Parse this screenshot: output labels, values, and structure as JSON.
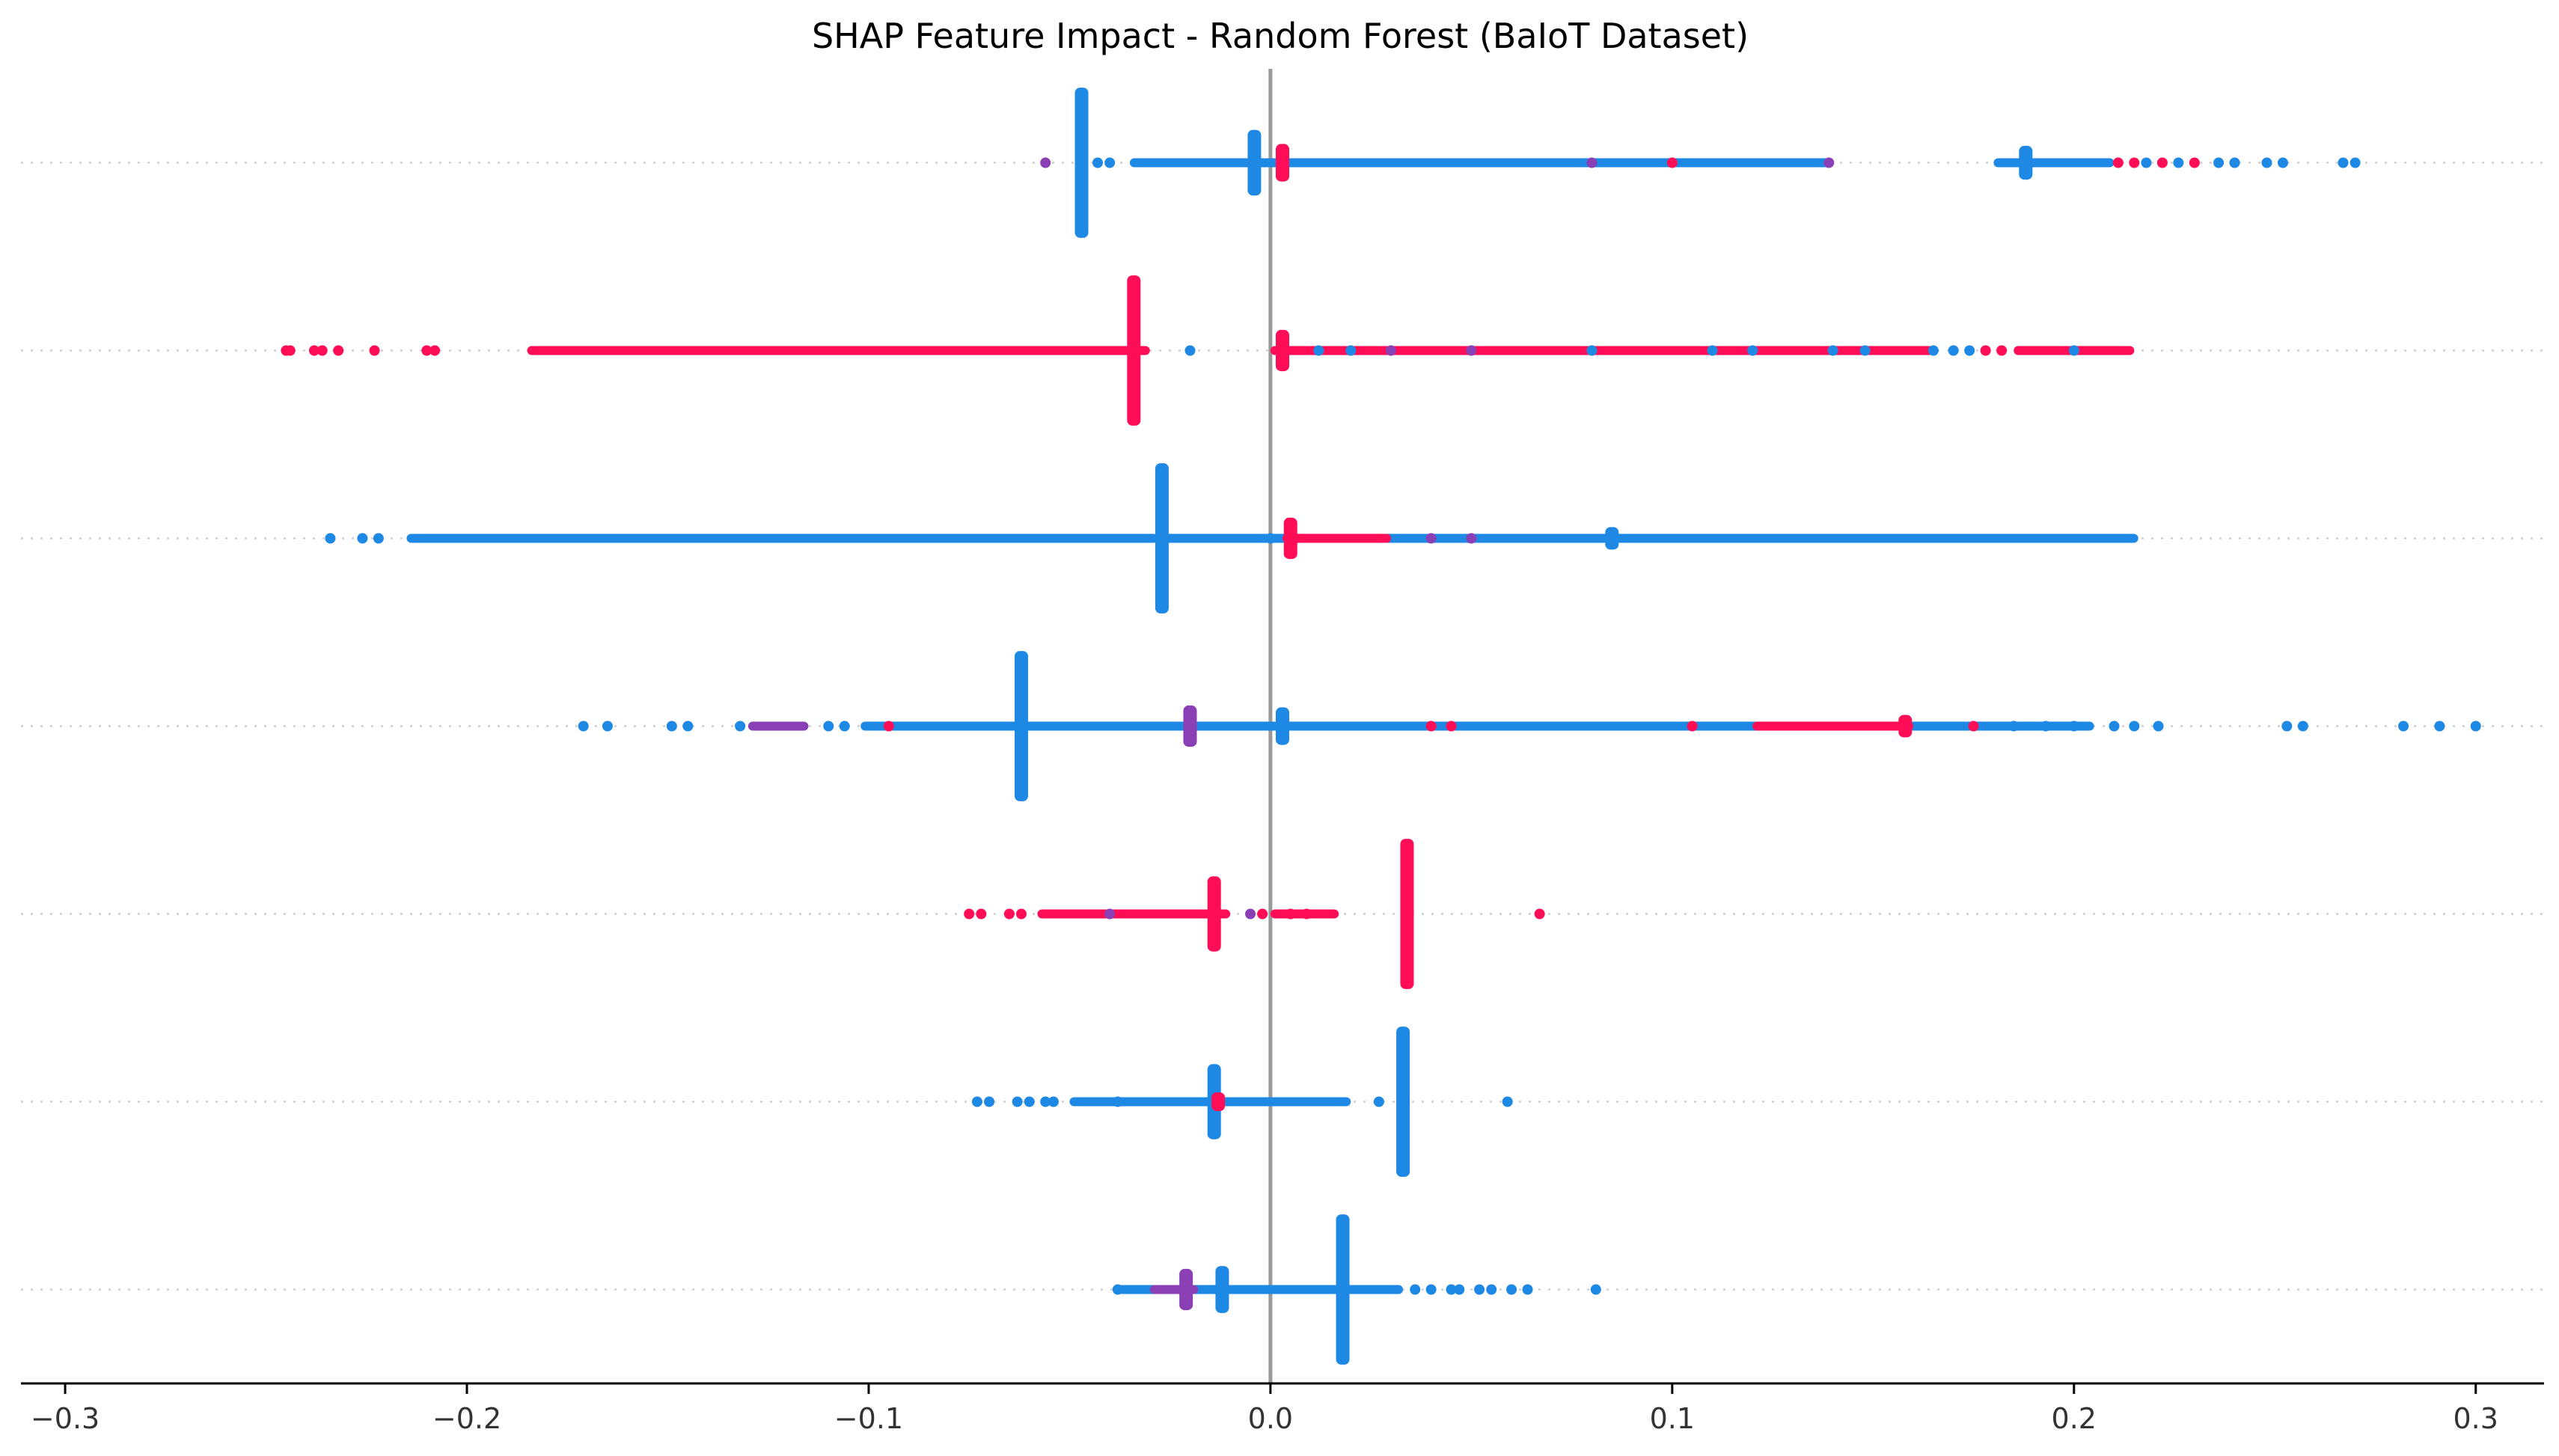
{
  "chart_data": {
    "type": "scatter",
    "title": "SHAP Feature Impact - Random Forest (BaIoT Dataset)",
    "xlabel": "",
    "ylabel": "",
    "xlim": [
      -0.311,
      0.317
    ],
    "xticks": [
      -0.3,
      -0.2,
      -0.1,
      0.0,
      0.1,
      0.2,
      0.3
    ],
    "xtick_labels": [
      "−0.3",
      "−0.2",
      "−0.1",
      "0.0",
      "0.1",
      "0.2",
      "0.3"
    ],
    "zero_line": 0.0,
    "grid": false,
    "legend": "none",
    "colors": {
      "high": "#ff0d57",
      "low": "#1e88e5",
      "mid": "#8a3fb5",
      "zero_line": "#999999",
      "guide": "#cfcfcf"
    },
    "features": [
      {
        "row": 1,
        "segments": [
          {
            "from": -0.035,
            "to": 0.14,
            "color": "low"
          },
          {
            "from": 0.18,
            "to": 0.21,
            "color": "low"
          }
        ],
        "clusters": [
          {
            "x": -0.047,
            "height": 0.8,
            "color": "low"
          },
          {
            "x": -0.004,
            "height": 0.35,
            "color": "low"
          },
          {
            "x": 0.003,
            "height": 0.2,
            "color": "high"
          },
          {
            "x": 0.188,
            "height": 0.18,
            "color": "low"
          }
        ],
        "points": [
          {
            "x": -0.056,
            "color": "mid"
          },
          {
            "x": -0.043,
            "color": "low"
          },
          {
            "x": -0.04,
            "color": "low"
          },
          {
            "x": 0.08,
            "color": "mid"
          },
          {
            "x": 0.1,
            "color": "high"
          },
          {
            "x": 0.139,
            "color": "mid"
          },
          {
            "x": 0.211,
            "color": "high"
          },
          {
            "x": 0.215,
            "color": "high"
          },
          {
            "x": 0.218,
            "color": "low"
          },
          {
            "x": 0.222,
            "color": "high"
          },
          {
            "x": 0.226,
            "color": "low"
          },
          {
            "x": 0.23,
            "color": "high"
          },
          {
            "x": 0.236,
            "color": "low"
          },
          {
            "x": 0.24,
            "color": "low"
          },
          {
            "x": 0.248,
            "color": "low"
          },
          {
            "x": 0.252,
            "color": "low"
          },
          {
            "x": 0.267,
            "color": "low"
          },
          {
            "x": 0.27,
            "color": "low"
          }
        ]
      },
      {
        "row": 2,
        "segments": [
          {
            "from": -0.185,
            "to": -0.03,
            "color": "high"
          },
          {
            "from": 0.0,
            "to": 0.165,
            "color": "high"
          },
          {
            "from": 0.185,
            "to": 0.215,
            "color": "high"
          }
        ],
        "clusters": [
          {
            "x": -0.034,
            "height": 0.8,
            "color": "high"
          },
          {
            "x": 0.003,
            "height": 0.22,
            "color": "high"
          }
        ],
        "points": [
          {
            "x": -0.245,
            "color": "high"
          },
          {
            "x": -0.244,
            "color": "high"
          },
          {
            "x": -0.238,
            "color": "high"
          },
          {
            "x": -0.236,
            "color": "high"
          },
          {
            "x": -0.232,
            "color": "high"
          },
          {
            "x": -0.223,
            "color": "high"
          },
          {
            "x": -0.21,
            "color": "high"
          },
          {
            "x": -0.208,
            "color": "high"
          },
          {
            "x": -0.02,
            "color": "low"
          },
          {
            "x": 0.012,
            "color": "low"
          },
          {
            "x": 0.02,
            "color": "low"
          },
          {
            "x": 0.03,
            "color": "mid"
          },
          {
            "x": 0.05,
            "color": "mid"
          },
          {
            "x": 0.08,
            "color": "low"
          },
          {
            "x": 0.11,
            "color": "low"
          },
          {
            "x": 0.12,
            "color": "low"
          },
          {
            "x": 0.14,
            "color": "low"
          },
          {
            "x": 0.148,
            "color": "low"
          },
          {
            "x": 0.165,
            "color": "low"
          },
          {
            "x": 0.17,
            "color": "low"
          },
          {
            "x": 0.174,
            "color": "low"
          },
          {
            "x": 0.178,
            "color": "high"
          },
          {
            "x": 0.182,
            "color": "high"
          },
          {
            "x": 0.2,
            "color": "low"
          }
        ]
      },
      {
        "row": 3,
        "segments": [
          {
            "from": -0.215,
            "to": -0.028,
            "color": "low"
          },
          {
            "from": -0.028,
            "to": 0.216,
            "color": "low"
          },
          {
            "from": 0.003,
            "to": 0.03,
            "color": "high"
          }
        ],
        "clusters": [
          {
            "x": -0.027,
            "height": 0.8,
            "color": "low"
          },
          {
            "x": 0.005,
            "height": 0.22,
            "color": "high"
          },
          {
            "x": 0.085,
            "height": 0.12,
            "color": "low"
          }
        ],
        "points": [
          {
            "x": -0.234,
            "color": "low"
          },
          {
            "x": -0.226,
            "color": "low"
          },
          {
            "x": -0.222,
            "color": "low"
          },
          {
            "x": 0.0,
            "color": "low"
          },
          {
            "x": 0.04,
            "color": "mid"
          },
          {
            "x": 0.05,
            "color": "mid"
          }
        ]
      },
      {
        "row": 4,
        "segments": [
          {
            "from": -0.102,
            "to": 0.205,
            "color": "low"
          },
          {
            "from": -0.13,
            "to": -0.115,
            "color": "mid"
          },
          {
            "from": 0.12,
            "to": 0.16,
            "color": "high"
          }
        ],
        "clusters": [
          {
            "x": -0.062,
            "height": 0.8,
            "color": "low"
          },
          {
            "x": -0.02,
            "height": 0.22,
            "color": "mid"
          },
          {
            "x": 0.003,
            "height": 0.2,
            "color": "low"
          },
          {
            "x": 0.158,
            "height": 0.12,
            "color": "high"
          }
        ],
        "points": [
          {
            "x": -0.171,
            "color": "low"
          },
          {
            "x": -0.165,
            "color": "low"
          },
          {
            "x": -0.149,
            "color": "low"
          },
          {
            "x": -0.145,
            "color": "low"
          },
          {
            "x": -0.132,
            "color": "low"
          },
          {
            "x": -0.11,
            "color": "low"
          },
          {
            "x": -0.106,
            "color": "low"
          },
          {
            "x": -0.095,
            "color": "high"
          },
          {
            "x": 0.04,
            "color": "high"
          },
          {
            "x": 0.045,
            "color": "high"
          },
          {
            "x": 0.105,
            "color": "high"
          },
          {
            "x": 0.175,
            "color": "high"
          },
          {
            "x": 0.185,
            "color": "low"
          },
          {
            "x": 0.193,
            "color": "low"
          },
          {
            "x": 0.2,
            "color": "low"
          },
          {
            "x": 0.21,
            "color": "low"
          },
          {
            "x": 0.215,
            "color": "low"
          },
          {
            "x": 0.221,
            "color": "low"
          },
          {
            "x": 0.253,
            "color": "low"
          },
          {
            "x": 0.257,
            "color": "low"
          },
          {
            "x": 0.282,
            "color": "low"
          },
          {
            "x": 0.291,
            "color": "low"
          },
          {
            "x": 0.3,
            "color": "low"
          }
        ]
      },
      {
        "row": 5,
        "segments": [
          {
            "from": -0.058,
            "to": -0.01,
            "color": "high"
          },
          {
            "from": 0.0,
            "to": 0.017,
            "color": "high"
          }
        ],
        "clusters": [
          {
            "x": -0.014,
            "height": 0.4,
            "color": "high"
          },
          {
            "x": 0.034,
            "height": 0.8,
            "color": "high"
          }
        ],
        "points": [
          {
            "x": -0.075,
            "color": "high"
          },
          {
            "x": -0.072,
            "color": "high"
          },
          {
            "x": -0.065,
            "color": "high"
          },
          {
            "x": -0.062,
            "color": "high"
          },
          {
            "x": -0.04,
            "color": "mid"
          },
          {
            "x": -0.005,
            "color": "mid"
          },
          {
            "x": -0.002,
            "color": "high"
          },
          {
            "x": 0.005,
            "color": "high"
          },
          {
            "x": 0.009,
            "color": "high"
          },
          {
            "x": 0.067,
            "color": "high"
          }
        ]
      },
      {
        "row": 6,
        "segments": [
          {
            "from": -0.05,
            "to": 0.02,
            "color": "low"
          }
        ],
        "clusters": [
          {
            "x": -0.014,
            "height": 0.4,
            "color": "low"
          },
          {
            "x": 0.033,
            "height": 0.8,
            "color": "low"
          },
          {
            "x": -0.013,
            "height": 0.1,
            "color": "high"
          }
        ],
        "points": [
          {
            "x": -0.073,
            "color": "low"
          },
          {
            "x": -0.07,
            "color": "low"
          },
          {
            "x": -0.063,
            "color": "low"
          },
          {
            "x": -0.06,
            "color": "low"
          },
          {
            "x": -0.056,
            "color": "low"
          },
          {
            "x": -0.054,
            "color": "low"
          },
          {
            "x": -0.038,
            "color": "low"
          },
          {
            "x": 0.027,
            "color": "low"
          },
          {
            "x": 0.059,
            "color": "low"
          }
        ]
      },
      {
        "row": 7,
        "segments": [
          {
            "from": -0.038,
            "to": 0.033,
            "color": "low"
          },
          {
            "from": -0.03,
            "to": -0.018,
            "color": "mid"
          }
        ],
        "clusters": [
          {
            "x": -0.021,
            "height": 0.22,
            "color": "mid"
          },
          {
            "x": -0.012,
            "height": 0.25,
            "color": "low"
          },
          {
            "x": 0.018,
            "height": 0.8,
            "color": "low"
          }
        ],
        "points": [
          {
            "x": -0.038,
            "color": "low"
          },
          {
            "x": 0.036,
            "color": "low"
          },
          {
            "x": 0.04,
            "color": "low"
          },
          {
            "x": 0.045,
            "color": "low"
          },
          {
            "x": 0.047,
            "color": "low"
          },
          {
            "x": 0.052,
            "color": "low"
          },
          {
            "x": 0.055,
            "color": "low"
          },
          {
            "x": 0.06,
            "color": "low"
          },
          {
            "x": 0.064,
            "color": "low"
          },
          {
            "x": 0.081,
            "color": "low"
          }
        ]
      }
    ]
  }
}
